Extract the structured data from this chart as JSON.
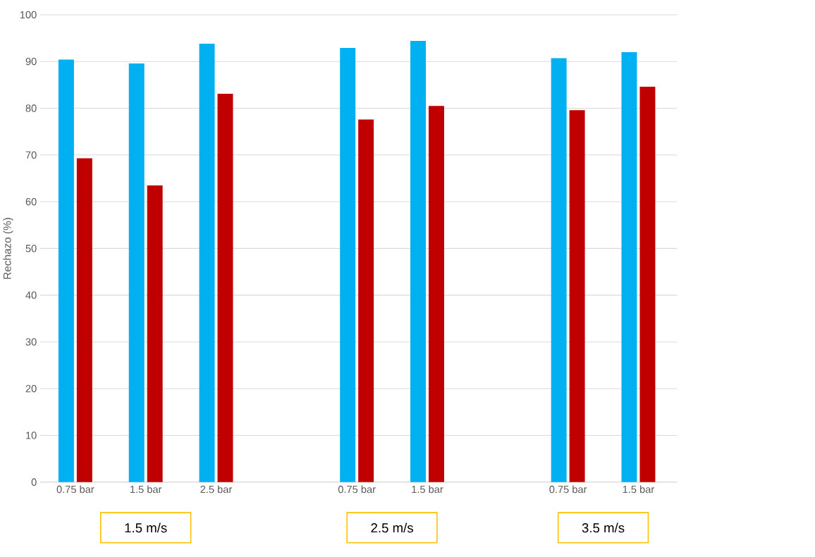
{
  "chart_data": {
    "type": "bar",
    "ylabel": "Rechazo (%)",
    "categories": [
      "0.75 bar",
      "1.5 bar",
      "2.5 bar",
      null,
      "0.75 bar",
      "1.5 bar",
      null,
      "0.75 bar",
      "1.5 bar"
    ],
    "series": [
      {
        "color": "#00b0f0",
        "values": [
          90.4,
          89.6,
          93.8,
          null,
          92.9,
          94.4,
          null,
          90.7,
          92.0
        ]
      },
      {
        "color": "#c00000",
        "values": [
          69.3,
          63.5,
          83.1,
          null,
          77.6,
          80.5,
          null,
          79.6,
          84.6
        ]
      }
    ],
    "ylim": [
      0,
      100
    ],
    "yticks": [
      0,
      10,
      20,
      30,
      40,
      50,
      60,
      70,
      80,
      90,
      100
    ],
    "grid": "y",
    "annotations": [
      "1.5 m/s",
      "2.5 m/s",
      "3.5 m/s"
    ]
  }
}
